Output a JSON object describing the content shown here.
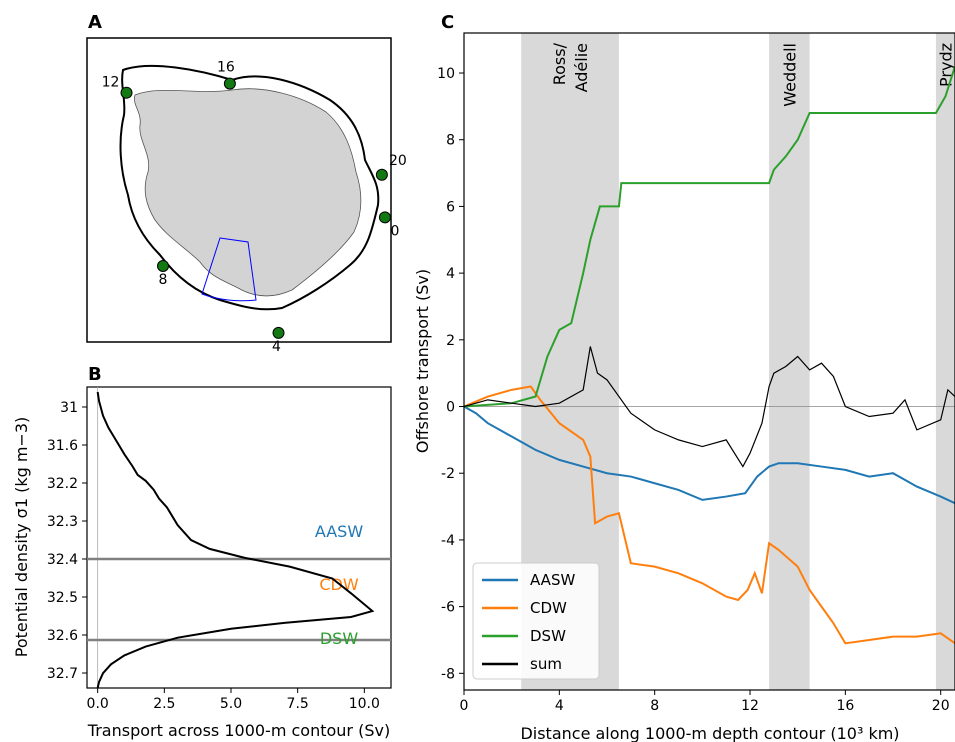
{
  "panel_labels": {
    "a": "A",
    "b": "B",
    "c": "C"
  },
  "colors": {
    "aasw": "#1f77b4",
    "cdw": "#ff7f0e",
    "dsw": "#2ca02c",
    "sum": "#000000",
    "land": "#d3d3d3",
    "station": "#137a13",
    "region": "#0000ff",
    "shade": "#d9d9d9"
  },
  "map_stations": [
    {
      "label": "12",
      "lon": 0.13,
      "lat": 0.82
    },
    {
      "label": "16",
      "lon": 0.47,
      "lat": 0.85
    },
    {
      "label": "20",
      "lon": 0.97,
      "lat": 0.55
    },
    {
      "label": "0",
      "lon": 0.98,
      "lat": 0.41
    },
    {
      "label": "8",
      "lon": 0.25,
      "lat": 0.25
    },
    {
      "label": "4",
      "lon": 0.63,
      "lat": 0.03
    }
  ],
  "chart_data": [
    {
      "panel": "B",
      "type": "line",
      "xlabel": "Transport across 1000-m contour (Sv)",
      "ylabel": "Potential density σ1 (kg m−3)",
      "xlim": [
        -0.4,
        11
      ],
      "xticks": [
        "0.0",
        "2.5",
        "5.0",
        "7.5",
        "10.0"
      ],
      "xtick_values": [
        0,
        2.5,
        5,
        7.5,
        10
      ],
      "yticks": [
        "31",
        "31.6",
        "32.2",
        "32.3",
        "32.4",
        "32.5",
        "32.6",
        "32.7"
      ],
      "hlines_at_tick": [
        "32.4",
        "32.6"
      ],
      "water_masses": [
        {
          "label": "AASW",
          "color": "#1f77b4"
        },
        {
          "label": "CDW",
          "color": "#ff7f0e"
        },
        {
          "label": "DSW",
          "color": "#2ca02c"
        }
      ],
      "series": [
        {
          "x": [
            0.0,
            0.05,
            0.2,
            0.4,
            0.6,
            0.8,
            1.0,
            1.3,
            1.5,
            1.8,
            2.1,
            2.3,
            2.6,
            2.8,
            3.0,
            3.5,
            4.2,
            5.5,
            7.2,
            8.8,
            9.5,
            10.3,
            9.5,
            7.0,
            5.0,
            3.0,
            1.8,
            1.0,
            0.5,
            0.2,
            0.05,
            0.0
          ],
          "y_frac": [
            0.0,
            0.03,
            0.08,
            0.12,
            0.15,
            0.18,
            0.21,
            0.25,
            0.28,
            0.3,
            0.33,
            0.36,
            0.39,
            0.42,
            0.45,
            0.5,
            0.53,
            0.56,
            0.59,
            0.63,
            0.68,
            0.74,
            0.76,
            0.78,
            0.8,
            0.83,
            0.86,
            0.89,
            0.92,
            0.95,
            0.98,
            1.0
          ]
        }
      ]
    },
    {
      "panel": "C",
      "type": "line",
      "xlabel": "Distance along 1000-m depth contour (10³ km)",
      "ylabel": "Offshore transport (Sv)",
      "xlim": [
        0,
        20.6
      ],
      "ylim": [
        -8.5,
        11.2
      ],
      "xticks": [
        0,
        4,
        8,
        12,
        16,
        20
      ],
      "yticks": [
        -8,
        -6,
        -4,
        -2,
        0,
        2,
        4,
        6,
        8,
        10
      ],
      "shaded_regions": [
        {
          "label": "Ross/\nAdélie",
          "lines": [
            "Ross/",
            "Adélie"
          ],
          "x0": 2.4,
          "x1": 6.5
        },
        {
          "label": "Weddell",
          "lines": [
            "Weddell"
          ],
          "x0": 12.8,
          "x1": 14.5
        },
        {
          "label": "Prydz",
          "lines": [
            "Prydz"
          ],
          "x0": 19.8,
          "x1": 20.6
        }
      ],
      "legend": {
        "position": "lower left",
        "entries": [
          "AASW",
          "CDW",
          "DSW",
          "sum"
        ]
      },
      "series": [
        {
          "name": "AASW",
          "color": "#1f77b4",
          "x": [
            0,
            0.5,
            1,
            2,
            3,
            4,
            5,
            6,
            7,
            8,
            9,
            10,
            11,
            11.8,
            12.3,
            12.8,
            13.2,
            14,
            15,
            16,
            17,
            18,
            18.5,
            19,
            20,
            20.6
          ],
          "y": [
            0,
            -0.2,
            -0.5,
            -0.9,
            -1.3,
            -1.6,
            -1.8,
            -2.0,
            -2.1,
            -2.3,
            -2.5,
            -2.8,
            -2.7,
            -2.6,
            -2.1,
            -1.8,
            -1.7,
            -1.7,
            -1.8,
            -1.9,
            -2.1,
            -2.0,
            -2.2,
            -2.4,
            -2.7,
            -2.9
          ]
        },
        {
          "name": "CDW",
          "color": "#ff7f0e",
          "x": [
            0,
            1,
            2,
            2.8,
            3.2,
            4,
            5,
            5.3,
            5.5,
            6.0,
            6.5,
            7,
            8,
            9,
            10,
            11,
            11.5,
            11.9,
            12.2,
            12.5,
            12.8,
            13.2,
            14,
            14.5,
            15,
            15.5,
            16,
            17,
            18,
            19,
            20,
            20.6
          ],
          "y": [
            0,
            0.3,
            0.5,
            0.6,
            0.2,
            -0.5,
            -1.0,
            -1.5,
            -3.5,
            -3.3,
            -3.2,
            -4.7,
            -4.8,
            -5.0,
            -5.3,
            -5.7,
            -5.8,
            -5.5,
            -5.0,
            -5.6,
            -4.1,
            -4.3,
            -4.8,
            -5.5,
            -6.0,
            -6.5,
            -7.1,
            -7.0,
            -6.9,
            -6.9,
            -6.8,
            -7.1
          ]
        },
        {
          "name": "DSW",
          "color": "#2ca02c",
          "x": [
            0,
            2,
            3,
            3.5,
            4,
            4.5,
            5,
            5.3,
            5.7,
            6.5,
            6.6,
            7,
            12.8,
            13.0,
            13.5,
            14.0,
            14.5,
            15,
            19.8,
            20.2,
            20.6
          ],
          "y": [
            0,
            0.1,
            0.3,
            1.5,
            2.3,
            2.5,
            4.0,
            5.0,
            6.0,
            6.0,
            6.7,
            6.7,
            6.7,
            7.1,
            7.5,
            8.0,
            8.8,
            8.8,
            8.8,
            9.3,
            10.2
          ]
        },
        {
          "name": "sum",
          "color": "#000000",
          "x": [
            0,
            1,
            2,
            3,
            4,
            5,
            5.3,
            5.6,
            6,
            7,
            8,
            9,
            10,
            11,
            11.7,
            12,
            12.5,
            12.8,
            13,
            13.5,
            14,
            14.5,
            15,
            15.5,
            16,
            17,
            18,
            18.5,
            19,
            20,
            20.3,
            20.6
          ],
          "y": [
            0,
            0.2,
            0.1,
            0.0,
            0.1,
            0.5,
            1.8,
            1.0,
            0.8,
            -0.2,
            -0.7,
            -1.0,
            -1.2,
            -1.0,
            -1.8,
            -1.4,
            -0.5,
            0.6,
            1.0,
            1.2,
            1.5,
            1.1,
            1.3,
            0.9,
            0.0,
            -0.3,
            -0.2,
            0.2,
            -0.7,
            -0.4,
            0.5,
            0.3
          ]
        }
      ]
    }
  ]
}
